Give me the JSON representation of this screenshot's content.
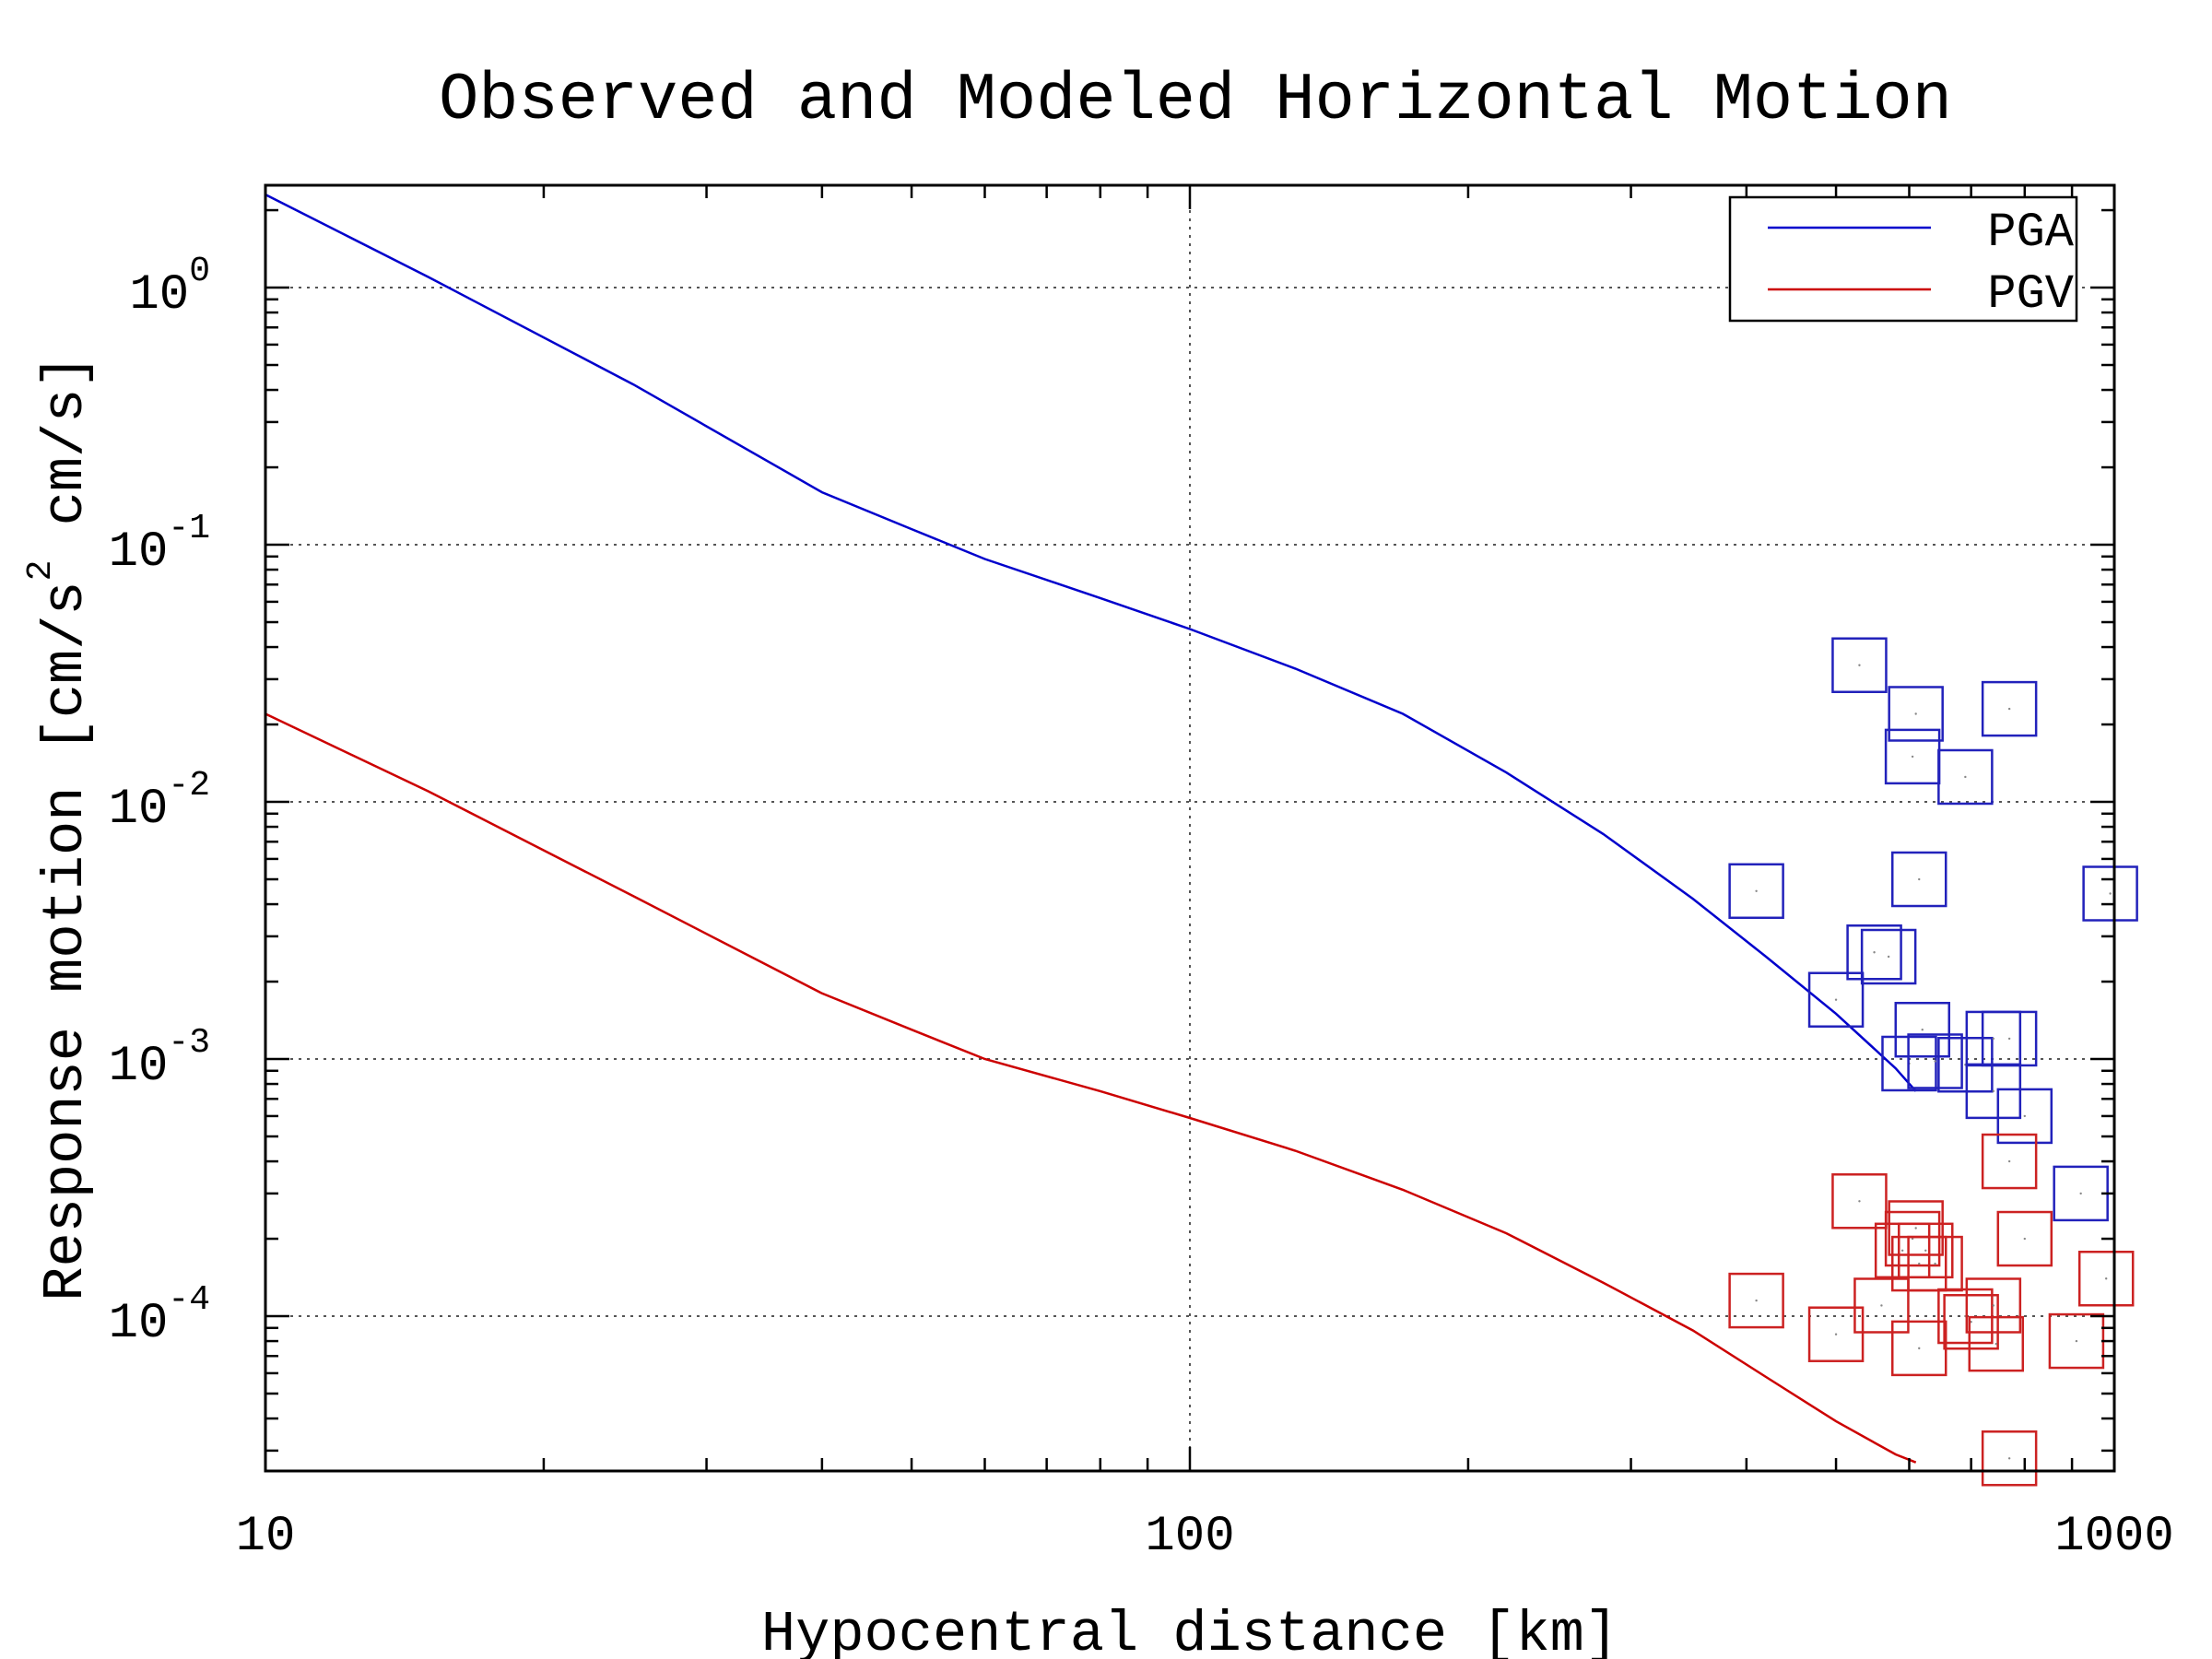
{
  "chart_data": {
    "type": "scatter",
    "title": "Observed and Modeled Horizontal Motion",
    "xlabel": "Hypocentral distance [km]",
    "ylabel_parts": [
      "Response motion [cm/s",
      "2",
      " cm/s]"
    ],
    "x_scale": "log",
    "y_scale": "log",
    "xlim": [
      10,
      1000
    ],
    "ylim": [
      2.5e-05,
      2.5
    ],
    "x_ticks": [
      {
        "value": 10,
        "label": "10"
      },
      {
        "value": 100,
        "label": "100"
      },
      {
        "value": 1000,
        "label": "1000"
      }
    ],
    "y_ticks": [
      {
        "value": 1,
        "base": "10",
        "exp": "0"
      },
      {
        "value": 0.1,
        "base": "10",
        "exp": "-1"
      },
      {
        "value": 0.01,
        "base": "10",
        "exp": "-2"
      },
      {
        "value": 0.001,
        "base": "10",
        "exp": "-3"
      },
      {
        "value": 0.0001,
        "base": "10",
        "exp": "-4"
      }
    ],
    "grid": true,
    "legend_position": "top-right",
    "series": [
      {
        "name": "PGA",
        "kind": "line",
        "color": "#0000cc",
        "x": [
          10,
          15,
          25,
          40,
          50,
          60,
          80,
          100,
          130,
          170,
          220,
          280,
          350,
          420,
          500,
          580,
          610
        ],
        "y": [
          2.3,
          1.1,
          0.42,
          0.16,
          0.115,
          0.088,
          0.062,
          0.047,
          0.033,
          0.022,
          0.013,
          0.0075,
          0.0042,
          0.0025,
          0.0015,
          0.00092,
          0.00075
        ]
      },
      {
        "name": "PGV",
        "kind": "line",
        "color": "#cc0000",
        "x": [
          10,
          15,
          25,
          40,
          50,
          60,
          80,
          100,
          130,
          170,
          220,
          280,
          350,
          420,
          500,
          580,
          610
        ],
        "y": [
          0.022,
          0.011,
          0.0043,
          0.0018,
          0.0013,
          0.001,
          0.00075,
          0.00059,
          0.00044,
          0.00031,
          0.00021,
          0.000135,
          8.8e-05,
          5.8e-05,
          3.9e-05,
          2.9e-05,
          2.7e-05
        ]
      },
      {
        "name": "",
        "kind": "markers",
        "color": "#2222bb",
        "x": [
          410,
          530,
          610,
          605,
          690,
          615,
          550,
          570,
          500,
          620,
          600,
          640,
          690,
          740,
          770,
          740,
          800,
          920,
          990,
          770
        ],
        "y": [
          0.0045,
          0.034,
          0.022,
          0.015,
          0.0125,
          0.005,
          0.0026,
          0.0025,
          0.0017,
          0.0013,
          0.00096,
          0.00098,
          0.00095,
          0.00075,
          0.0012,
          0.0012,
          0.0006,
          0.0003,
          0.0044,
          0.023
        ]
      },
      {
        "name": "",
        "kind": "markers",
        "color": "#cc2222",
        "x": [
          410,
          530,
          610,
          605,
          590,
          615,
          625,
          640,
          560,
          500,
          615,
          690,
          700,
          740,
          745,
          770,
          800,
          910,
          980,
          770
        ],
        "y": [
          0.000115,
          0.00028,
          0.00022,
          0.0002,
          0.00018,
          0.00016,
          0.00018,
          0.00016,
          0.00011,
          8.5e-05,
          7.5e-05,
          0.0001,
          9.5e-05,
          0.00011,
          7.8e-05,
          0.0004,
          0.0002,
          8e-05,
          0.00014,
          2.8e-05
        ]
      }
    ]
  }
}
